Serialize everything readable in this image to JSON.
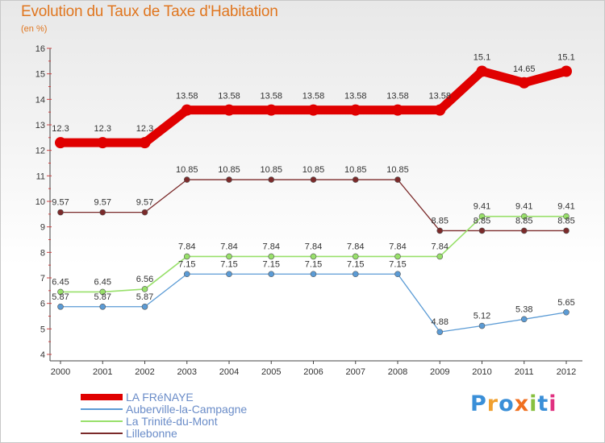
{
  "chart_data": {
    "type": "line",
    "title": "Evolution du Taux de Taxe d'Habitation",
    "subtitle": "(en %)",
    "x": [
      "2000",
      "2001",
      "2002",
      "2003",
      "2004",
      "2005",
      "2006",
      "2007",
      "2008",
      "2009",
      "2010",
      "2011",
      "2012"
    ],
    "ylim": [
      4,
      16
    ],
    "yticks": [
      "4",
      "5",
      "6",
      "7",
      "8",
      "9",
      "10",
      "11",
      "12",
      "13",
      "14",
      "15",
      "16"
    ],
    "grid": false,
    "series": [
      {
        "name": "LA FRéNAYE",
        "color": "#e00000",
        "values": [
          12.3,
          12.3,
          12.3,
          13.58,
          13.58,
          13.58,
          13.58,
          13.58,
          13.58,
          13.58,
          15.1,
          14.65,
          15.1
        ],
        "labels": [
          "12.3",
          "12.3",
          "12.3",
          "13.58",
          "13.58",
          "13.58",
          "13.58",
          "13.58",
          "13.58",
          "13.58",
          "15.1",
          "14.65",
          "15.1"
        ]
      },
      {
        "name": "Auberville-la-Campagne",
        "color": "#5b9bd5",
        "values": [
          5.87,
          5.87,
          5.87,
          7.15,
          7.15,
          7.15,
          7.15,
          7.15,
          7.15,
          4.88,
          5.12,
          5.38,
          5.65
        ],
        "labels": [
          "5.87",
          "5.87",
          "5.87",
          "7.15",
          "7.15",
          "7.15",
          "7.15",
          "7.15",
          "7.15",
          "4.88",
          "5.12",
          "5.38",
          "5.65"
        ]
      },
      {
        "name": "La Trinité-du-Mont",
        "color": "#98e06a",
        "values": [
          6.45,
          6.45,
          6.56,
          7.84,
          7.84,
          7.84,
          7.84,
          7.84,
          7.84,
          7.84,
          9.41,
          9.41,
          9.41
        ],
        "labels": [
          "6.45",
          "6.45",
          "6.56",
          "7.84",
          "7.84",
          "7.84",
          "7.84",
          "7.84",
          "7.84",
          "7.84",
          "9.41",
          "9.41",
          "9.41"
        ]
      },
      {
        "name": "Lillebonne",
        "color": "#7b2a2a",
        "values": [
          9.57,
          9.57,
          9.57,
          10.85,
          10.85,
          10.85,
          10.85,
          10.85,
          10.85,
          8.85,
          8.85,
          8.85,
          8.85
        ],
        "labels": [
          "9.57",
          "9.57",
          "9.57",
          "10.85",
          "10.85",
          "10.85",
          "10.85",
          "10.85",
          "10.85",
          "8.85",
          "8.85",
          "8.85",
          "8.85"
        ]
      }
    ]
  },
  "logo": {
    "text": "Proxiti",
    "letters": [
      "P",
      "r",
      "o",
      "x",
      "i",
      "t",
      "i"
    ],
    "colors": [
      "#3a8fd8",
      "#f0a030",
      "#3a8fd8",
      "#f07020",
      "#88c040",
      "#3a8fd8",
      "#e03080"
    ]
  }
}
